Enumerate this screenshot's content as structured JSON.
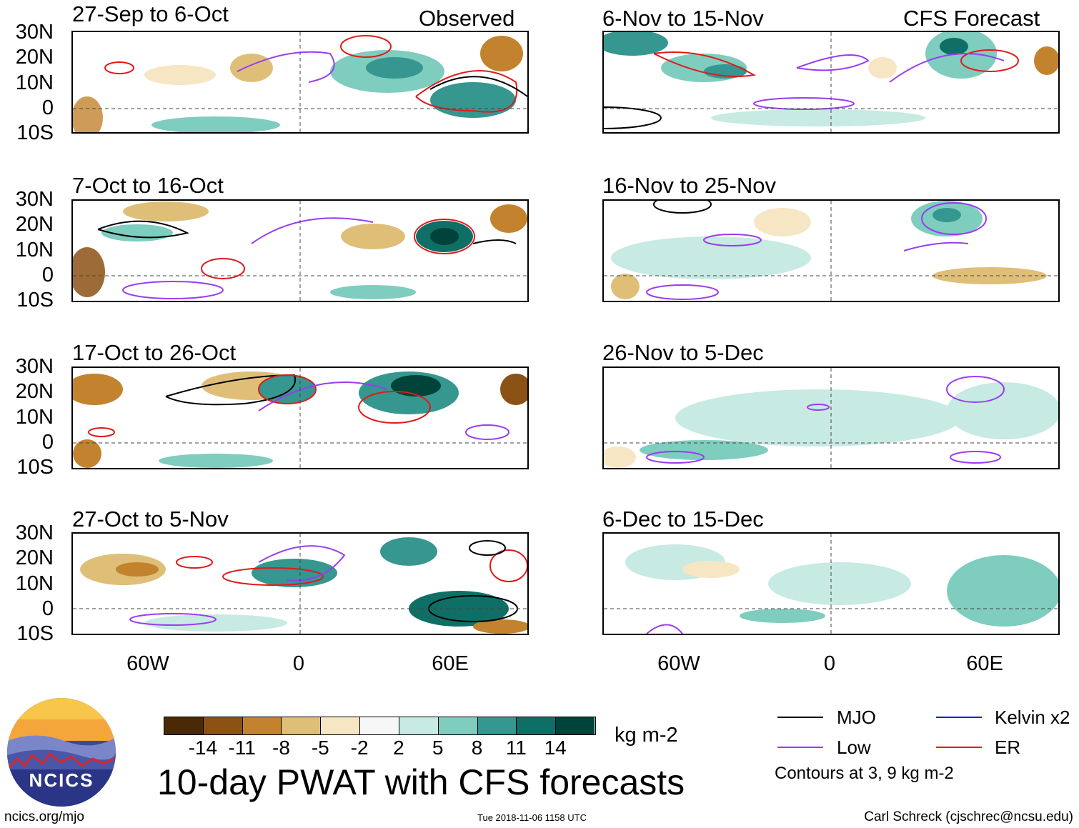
{
  "panels": [
    {
      "id": "p1",
      "title": "27-Sep to 6-Oct",
      "tag": "Observed"
    },
    {
      "id": "p2",
      "title": "6-Nov to 15-Nov",
      "tag": "CFS Forecast"
    },
    {
      "id": "p3",
      "title": "7-Oct to 16-Oct",
      "tag": ""
    },
    {
      "id": "p4",
      "title": "16-Nov to 25-Nov",
      "tag": ""
    },
    {
      "id": "p5",
      "title": "17-Oct to 26-Oct",
      "tag": ""
    },
    {
      "id": "p6",
      "title": "26-Nov to 5-Dec",
      "tag": ""
    },
    {
      "id": "p7",
      "title": "27-Oct to 5-Nov",
      "tag": ""
    },
    {
      "id": "p8",
      "title": "6-Dec to 15-Dec",
      "tag": ""
    }
  ],
  "lat_labels": [
    "30N",
    "20N",
    "10N",
    "0",
    "10S"
  ],
  "lon_labels": [
    "60W",
    "0",
    "60E"
  ],
  "colorbar": {
    "colors": [
      "#4a2a06",
      "#8c5114",
      "#c3832e",
      "#dfbf78",
      "#f6e6c4",
      "#f7f7f7",
      "#c7eae3",
      "#7ecdbf",
      "#35978f",
      "#0f6f66",
      "#00433a"
    ],
    "ticks": [
      "-14",
      "-11",
      "-8",
      "-5",
      "-2",
      "2",
      "5",
      "8",
      "11",
      "14"
    ],
    "units": "kg m-2"
  },
  "legend": {
    "items": [
      {
        "label": "MJO",
        "color": "#000000"
      },
      {
        "label": "Kelvin x2",
        "color": "#2222cc"
      },
      {
        "label": "Low",
        "color": "#9a3cf0"
      },
      {
        "label": "ER",
        "color": "#e01a1a"
      }
    ],
    "note": "Contours at 3, 9 kg m-2"
  },
  "logo_text": "NCICS",
  "main_title": "10-day PWAT with CFS forecasts",
  "footer": {
    "left": "ncics.org/mjo",
    "center": "Tue 2018-11-06 1158 UTC",
    "right": "Carl Schreck (cjschrec@ncsu.edu)"
  }
}
